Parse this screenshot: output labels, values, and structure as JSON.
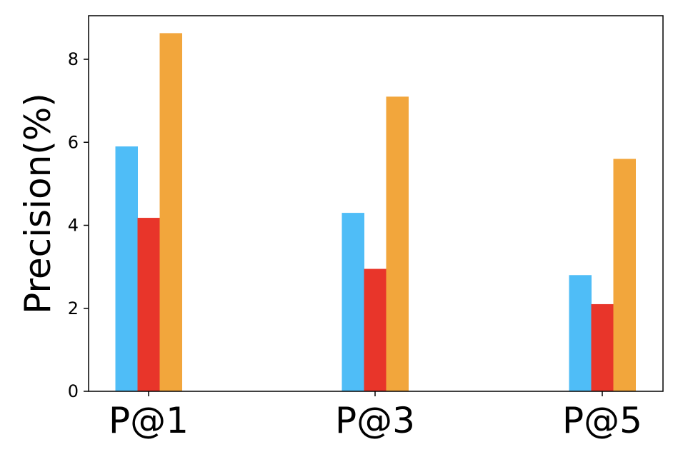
{
  "chart_data": {
    "type": "bar",
    "title": "",
    "xlabel": "",
    "ylabel": "Precision(%)",
    "categories": [
      "P@1",
      "P@3",
      "P@5"
    ],
    "series": [
      {
        "color": "#4fbdf7",
        "values": [
          5.9,
          4.3,
          2.8
        ]
      },
      {
        "color": "#e8352a",
        "values": [
          4.18,
          2.95,
          2.1
        ]
      },
      {
        "color": "#f2a63c",
        "values": [
          8.63,
          7.1,
          5.6
        ]
      }
    ],
    "ylim": [
      0,
      9.05
    ],
    "yticks": [
      0,
      2,
      4,
      6,
      8
    ],
    "grid": false,
    "legend": "none"
  }
}
